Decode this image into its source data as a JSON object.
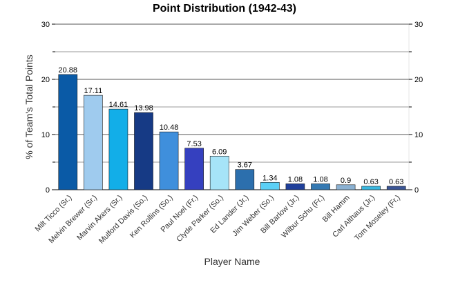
{
  "chart_data": {
    "type": "bar",
    "title": "Point Distribution (1942-43)",
    "xlabel": "Player Name",
    "ylabel": "% of Team's Total Points",
    "ylim": [
      0,
      30
    ],
    "y_ticks": [
      0,
      10,
      20,
      30
    ],
    "grid": true,
    "legend": "none",
    "categories": [
      "Milt Ticco (Sr.)",
      "Melvin Brewer (Sr.)",
      "Marvin Akers (Sr.)",
      "Mulford Davis (So.)",
      "Ken Rollins (So.)",
      "Paul Noel (Fr.)",
      "Clyde Parker (So.)",
      "Ed Lander (Jr.)",
      "Jim Weber (So.)",
      "Bill Barlow (Jr.)",
      "Wilbur Schu (Fr.)",
      "Bill Hamm",
      "Carl Althaus (Jr.)",
      "Tom Moseley (Fr.)"
    ],
    "values": [
      20.88,
      17.11,
      14.61,
      13.98,
      10.48,
      7.53,
      6.09,
      3.67,
      1.34,
      1.08,
      1.08,
      0.9,
      0.63,
      0.63
    ],
    "value_labels": [
      "20.88",
      "17.11",
      "14.61",
      "13.98",
      "10.48",
      "7.53",
      "6.09",
      "3.67",
      "1.34",
      "1.08",
      "1.08",
      "0.9",
      "0.63",
      "0.63"
    ],
    "colors": [
      "#0a5aa6",
      "#9fcbee",
      "#12aee8",
      "#163a85",
      "#3f8fdc",
      "#3540bf",
      "#a6e4f8",
      "#2c6fad",
      "#5bd0f6",
      "#1f3f9a",
      "#3579b2",
      "#8bb1d2",
      "#3ab8e0",
      "#3a5596"
    ]
  }
}
